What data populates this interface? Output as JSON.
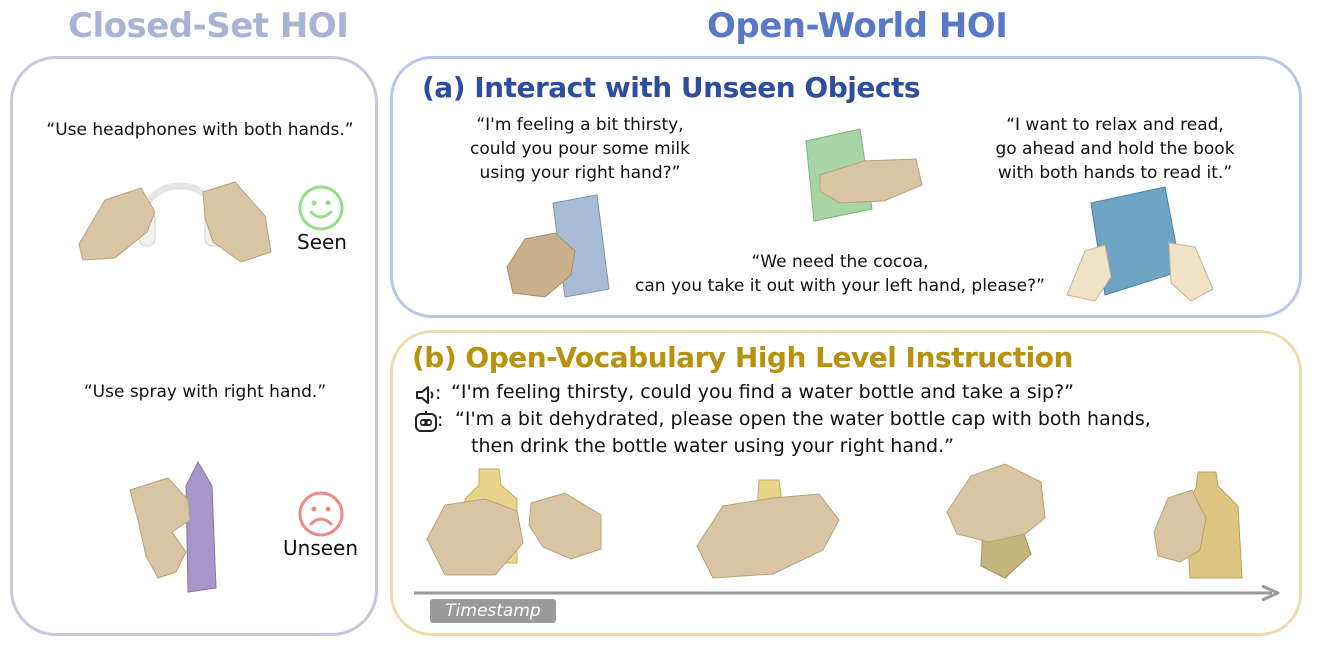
{
  "closed_set": {
    "title": "Closed-Set HOI",
    "seen_quote": "“Use headphones with both hands.”",
    "seen_label": "Seen",
    "unseen_quote": "“Use spray with right hand.”",
    "unseen_label": "Unseen"
  },
  "open_world": {
    "title": "Open-World HOI",
    "panel_a": {
      "title": "(a) Interact with Unseen Objects",
      "quote_milk": [
        "“I'm feeling a bit thirsty,",
        "could you pour some milk",
        "using your right hand?”"
      ],
      "quote_cocoa": [
        "“We need the cocoa,",
        "can you take it out with your left hand, please?”"
      ],
      "quote_book": [
        "“I want to relax and read,",
        "go ahead and hold the book",
        "with both hands to read it.”"
      ]
    },
    "panel_b": {
      "title": "(b) Open-Vocabulary High Level Instruction",
      "user_line": "“I'm feeling thirsty, could you find a water bottle and take a sip?”",
      "robot_line_1": "“I'm a bit dehydrated,  please open the water bottle cap with both hands,",
      "robot_line_2": "then drink the bottle water using your right hand.”",
      "timestamp_label": "Timestamp"
    }
  },
  "colors": {
    "closed_title": "#a9b3d6",
    "open_title": "#5a78c8",
    "panel_a_title": "#2f4d9e",
    "panel_b_title": "#b8920f",
    "closed_border": "#c7c8dc",
    "panel_a_border": "#b9c8ea",
    "panel_b_border": "#ecdcae",
    "seen_face": "#9bdc88",
    "unseen_face": "#ee8a84",
    "hand": "#d9c5a4",
    "arrow": "#9a9a9a"
  },
  "icons": [
    "smiling-face-icon",
    "frowning-face-icon",
    "speaker-icon",
    "robot-icon",
    "timeline-arrow-icon"
  ]
}
